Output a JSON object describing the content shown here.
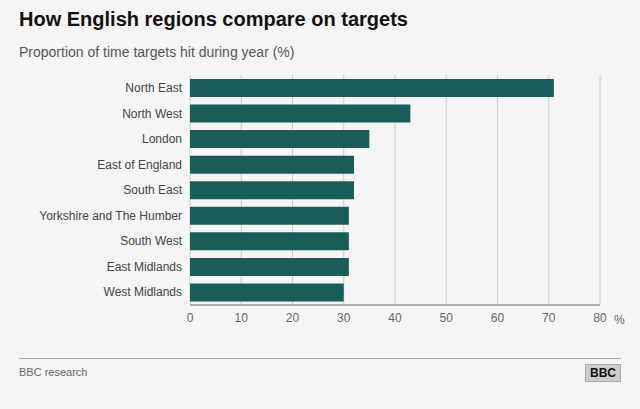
{
  "chart_data": {
    "type": "bar",
    "title": "How English regions compare on targets",
    "subtitle": "Proportion of time targets hit during year (%)",
    "categories": [
      "North East",
      "North West",
      "London",
      "East of England",
      "South East",
      "Yorkshire and The Humber",
      "South West",
      "East Midlands",
      "West Midlands"
    ],
    "values": [
      71,
      43,
      35,
      32,
      32,
      31,
      31,
      31,
      30
    ],
    "color": "#1a5c5a",
    "orientation": "horizontal",
    "xlim": [
      0,
      80
    ],
    "xticks": [
      0,
      10,
      20,
      30,
      40,
      50,
      60,
      70,
      80
    ],
    "xlabel": "%",
    "grid": true,
    "annotations": [
      "BBC research",
      "BBC"
    ]
  }
}
